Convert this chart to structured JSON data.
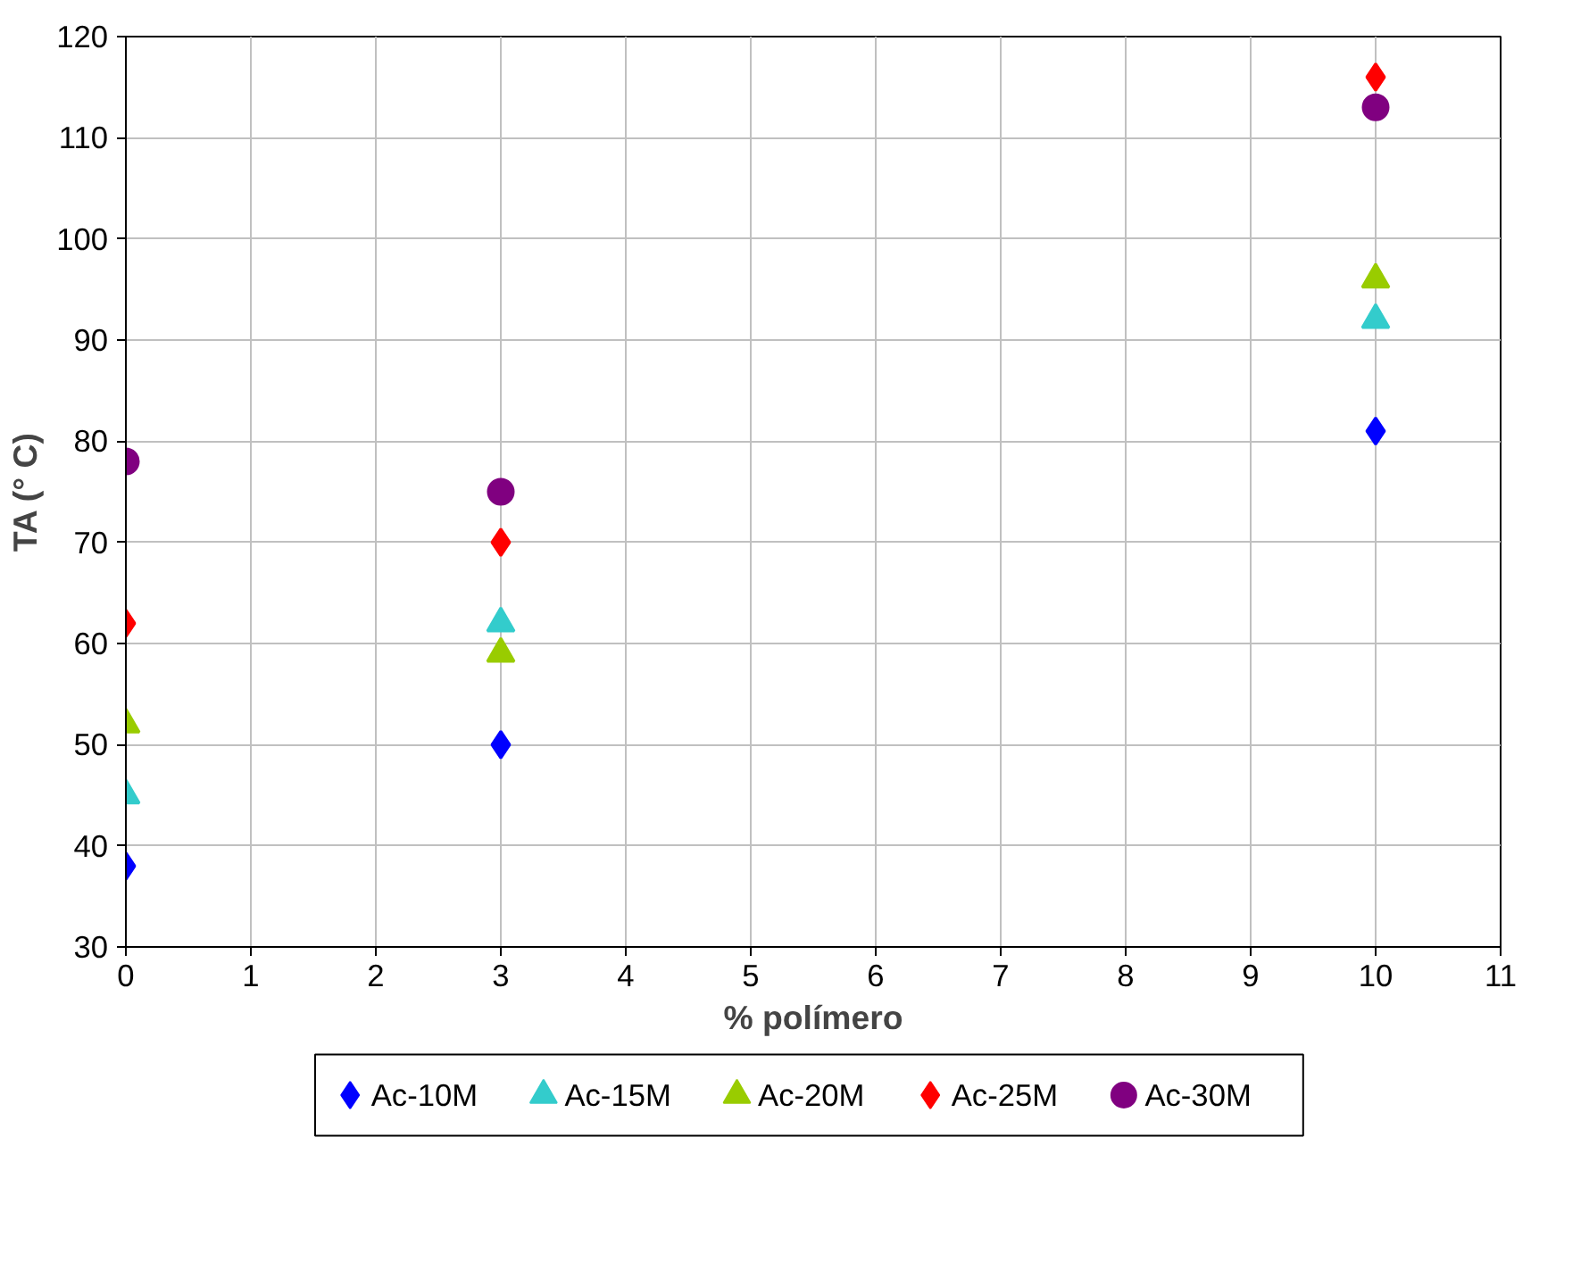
{
  "chart_data": {
    "type": "scatter",
    "xlabel": "% polímero",
    "ylabel": "TA (° C)",
    "x": [
      0,
      3,
      10
    ],
    "xlim": [
      0,
      11
    ],
    "xticks": [
      0,
      1,
      2,
      3,
      4,
      5,
      6,
      7,
      8,
      9,
      10,
      11
    ],
    "ylim": [
      30,
      120
    ],
    "yticks": [
      30,
      40,
      50,
      60,
      70,
      80,
      90,
      100,
      110,
      120
    ],
    "grid": true,
    "legend": "bottom",
    "series": [
      {
        "name": "Ac-10M",
        "color": "#0000ff",
        "marker": "diamond",
        "values": [
          38,
          50,
          81
        ]
      },
      {
        "name": "Ac-15M",
        "color": "#33cccc",
        "marker": "triangle",
        "values": [
          45,
          62,
          92
        ]
      },
      {
        "name": "Ac-20M",
        "color": "#99cc00",
        "marker": "triangle",
        "values": [
          52,
          59,
          96
        ]
      },
      {
        "name": "Ac-25M",
        "color": "#ff0000",
        "marker": "diamond",
        "values": [
          62,
          70,
          116
        ]
      },
      {
        "name": "Ac-30M",
        "color": "#800080",
        "marker": "circle",
        "values": [
          78,
          75,
          113
        ]
      }
    ]
  }
}
